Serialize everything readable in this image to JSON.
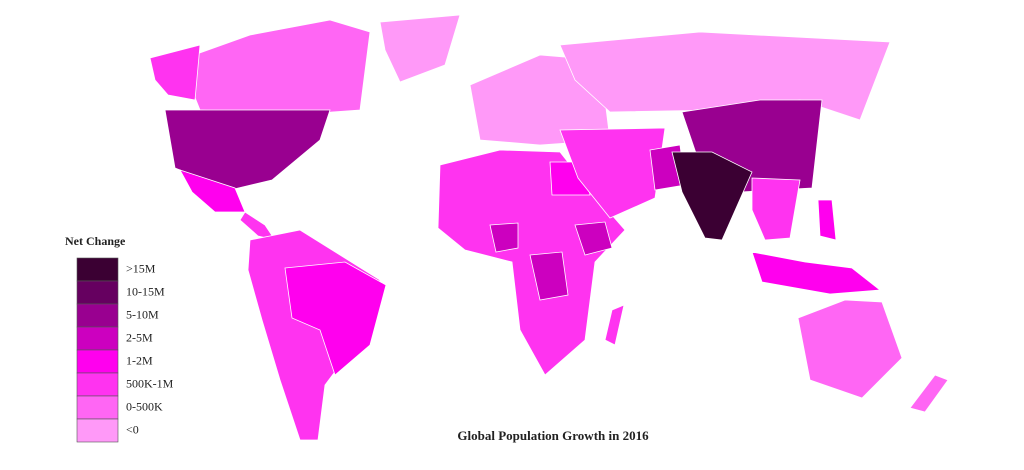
{
  "map": {
    "title": "Global Population Growth in 2016",
    "legend": {
      "title": "Net Change",
      "items": [
        {
          "label": ">15M",
          "color": "#3b0033"
        },
        {
          "label": "10-15M",
          "color": "#660060"
        },
        {
          "label": "5-10M",
          "color": "#990090"
        },
        {
          "label": "2-5M",
          "color": "#cc00bf"
        },
        {
          "label": "1-2M",
          "color": "#ff00ee"
        },
        {
          "label": "500K-1M",
          "color": "#ff33f0"
        },
        {
          "label": "0-500K",
          "color": "#ff66f4"
        },
        {
          "label": "<0",
          "color": "#ff99f8"
        }
      ]
    }
  }
}
